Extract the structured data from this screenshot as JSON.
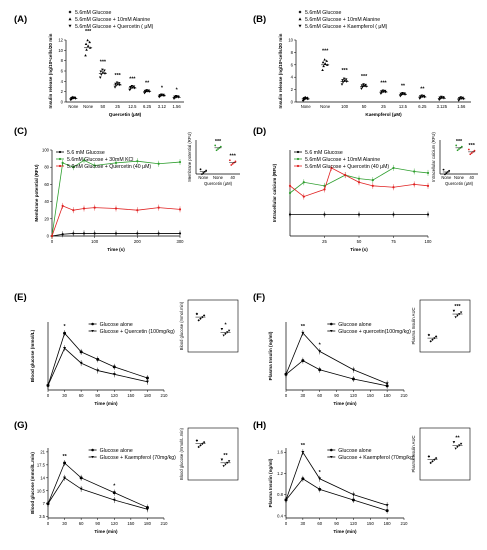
{
  "panels": [
    {
      "id": "A",
      "label": "(A)"
    },
    {
      "id": "B",
      "label": "(B)"
    },
    {
      "id": "C",
      "label": "(C)"
    },
    {
      "id": "D",
      "label": "(D)"
    },
    {
      "id": "E",
      "label": "(E)"
    },
    {
      "id": "F",
      "label": "(F)"
    },
    {
      "id": "G",
      "label": "(G)"
    },
    {
      "id": "H",
      "label": "(H)"
    }
  ],
  "colors": {
    "black": "#000000",
    "green": "#2e9e2e",
    "red": "#e02020"
  },
  "chart_data": [
    {
      "panel": "A",
      "type": "scatter",
      "legend": [
        "5.6mM Glucose",
        "5.6mM Glucose + 10mM Alanine",
        "5.6mM Glucose + Quercetin ( μM)"
      ],
      "ylabel": "Insulin release (ng/10⁶cells/20 min",
      "xlabel": "Quercetin (μM)",
      "categories": [
        "None",
        "None",
        "50",
        "25",
        "12.5",
        "6.25",
        "3.12",
        "1.56"
      ],
      "means": [
        0.7,
        10.5,
        5.5,
        3.3,
        2.7,
        2.0,
        1.2,
        0.9
      ],
      "sig": [
        "",
        "***",
        "***",
        "***",
        "***",
        "**",
        "*",
        "*"
      ],
      "yticks": [
        0,
        2,
        4,
        6,
        8,
        10,
        12
      ],
      "ylim": [
        0,
        12
      ]
    },
    {
      "panel": "B",
      "type": "scatter",
      "legend": [
        "5.6mM Glucose",
        "5.6mM Glucose + 10mM Alanine",
        "5.6mM Glucose + Kaempferol ( μM)"
      ],
      "ylabel": "Insulin release (ng/10⁶cells/20 min",
      "xlabel": "Kaempferol (μM)",
      "categories": [
        "None",
        "None",
        "100",
        "50",
        "25",
        "12.5",
        "6.25",
        "3.125",
        "1.56"
      ],
      "means": [
        0.5,
        6.0,
        3.3,
        2.5,
        1.6,
        1.2,
        0.8,
        0.6,
        0.5
      ],
      "sig": [
        "",
        "***",
        "***",
        "***",
        "***",
        "**",
        "**",
        "",
        ""
      ],
      "yticks": [
        0,
        2,
        4,
        6,
        8,
        10
      ],
      "ylim": [
        0,
        10
      ]
    },
    {
      "panel": "C",
      "type": "line",
      "legend": [
        "5.6 mM Glucose",
        "5.6mM Glucose + 30mM KCl",
        "5.6mM Glucose + Quercetin (40 μM)"
      ],
      "ylabel": "Membrane potential (RFU)",
      "xlabel": "Time (s)",
      "xlim": [
        0,
        300
      ],
      "ylim": [
        0,
        100
      ],
      "xticks": [
        0,
        100,
        200,
        300
      ],
      "yticks": [
        0,
        20,
        40,
        60,
        80,
        100
      ],
      "series": [
        {
          "name": "5.6 mM Glucose",
          "color": "black",
          "x": [
            0,
            25,
            50,
            75,
            100,
            150,
            200,
            250,
            300
          ],
          "y": [
            0,
            2,
            3,
            3,
            3,
            3,
            3,
            3,
            3
          ]
        },
        {
          "name": "5.6mM Glucose + 30mM KCl",
          "color": "green",
          "x": [
            0,
            25,
            50,
            75,
            100,
            150,
            200,
            250,
            300
          ],
          "y": [
            0,
            85,
            80,
            88,
            82,
            85,
            87,
            84,
            86
          ]
        },
        {
          "name": "5.6mM Glucose + Quercetin (40 μM)",
          "color": "red",
          "x": [
            0,
            25,
            50,
            75,
            100,
            150,
            200,
            250,
            300
          ],
          "y": [
            0,
            35,
            30,
            32,
            33,
            32,
            30,
            33,
            31
          ]
        }
      ],
      "inset": {
        "ylabel": "Membrane potential (RFU)",
        "xlabel": "Quercetin (μM)",
        "categories": [
          "None",
          "None",
          "40"
        ],
        "means": [
          4,
          46,
          20
        ],
        "sig": [
          "",
          "***",
          "***"
        ]
      }
    },
    {
      "panel": "D",
      "type": "line",
      "legend": [
        "5.6 mM Glucose",
        "5.6mM Glucose + 10mM Alanine",
        "5.6mM Glucose + Quercetin (40 μM)"
      ],
      "ylabel": "Intracellular calcium (RFU)",
      "xlabel": "Time (s)",
      "xlim": [
        0,
        100
      ],
      "ylim": [
        0,
        120
      ],
      "xticks": [
        25,
        50,
        75,
        100
      ],
      "series": [
        {
          "name": "5.6 mM Glucose",
          "color": "black",
          "x": [
            0,
            25,
            50,
            75,
            100
          ],
          "y": [
            30,
            30,
            30,
            30,
            30
          ]
        },
        {
          "name": "5.6mM Glucose + 10mM Alanine",
          "color": "green",
          "x": [
            0,
            10,
            25,
            40,
            50,
            60,
            75,
            90,
            100
          ],
          "y": [
            60,
            75,
            70,
            85,
            80,
            78,
            95,
            90,
            88
          ]
        },
        {
          "name": "5.6mM Glucose + Quercetin (40 μM)",
          "color": "red",
          "x": [
            0,
            10,
            25,
            30,
            40,
            50,
            60,
            75,
            90,
            100
          ],
          "y": [
            70,
            55,
            65,
            95,
            85,
            75,
            70,
            68,
            72,
            70
          ]
        }
      ],
      "inset": {
        "ylabel": "Intracellular calcium (RFU)",
        "xlabel": "Quercetin (μM)",
        "categories": [
          "None",
          "None",
          "40"
        ],
        "means": [
          10,
          130,
          110
        ],
        "sig": [
          "",
          "***",
          "***"
        ]
      }
    },
    {
      "panel": "E",
      "type": "line",
      "legend": [
        "Glucose alone",
        "Glucose + Quercetin (100mg/kg)"
      ],
      "ylabel": "Blood glucose (mmol/L)",
      "xlabel": "Time (min)",
      "xticks": [
        0,
        30,
        60,
        90,
        120,
        150,
        180,
        210
      ],
      "series": [
        {
          "name": "Glucose alone",
          "x": [
            0,
            30,
            60,
            90,
            120,
            180
          ],
          "y": [
            6,
            20,
            15,
            13,
            11,
            8
          ]
        },
        {
          "name": "Glucose + Quercetin (100mg/kg)",
          "x": [
            0,
            30,
            60,
            90,
            120,
            180
          ],
          "y": [
            6,
            16,
            12,
            10,
            9,
            7
          ]
        }
      ],
      "sig": [
        {
          "x": 30,
          "text": "*"
        }
      ],
      "inset": {
        "ylabel": "Blood glucose (mmol.min)",
        "values": [
          1500,
          1300
        ],
        "sig": [
          "",
          "*"
        ]
      }
    },
    {
      "panel": "F",
      "type": "line",
      "legend": [
        "Glucose alone",
        "Glucose + quercetin(100mg/kg)"
      ],
      "ylabel": "Plasma Insulin (ng/ml)",
      "xlabel": "Time (min)",
      "xticks": [
        0,
        30,
        60,
        90,
        120,
        150,
        180,
        210
      ],
      "series": [
        {
          "name": "Glucose alone",
          "x": [
            0,
            30,
            60,
            120,
            180
          ],
          "y": [
            0.7,
            1.0,
            0.8,
            0.6,
            0.45
          ]
        },
        {
          "name": "Glucose + quercetin(100mg/kg)",
          "x": [
            0,
            30,
            60,
            120,
            180
          ],
          "y": [
            0.7,
            1.6,
            1.2,
            0.8,
            0.5
          ]
        }
      ],
      "sig": [
        {
          "x": 30,
          "text": "**"
        },
        {
          "x": 60,
          "text": "*"
        }
      ],
      "inset": {
        "ylabel": "Plasma Insulin AUC",
        "values": [
          130,
          175
        ],
        "sig": [
          "",
          "***"
        ]
      }
    },
    {
      "panel": "G",
      "type": "line",
      "legend": [
        "Glucose alone",
        "Glucose + Kaempferol (70mg/kg)"
      ],
      "ylabel": "Blood glucose (mmol/L.min)",
      "xlabel": "Time (min)",
      "yticks": [
        3.5,
        7.0,
        10.5,
        14.0,
        17.5,
        21.0
      ],
      "xticks": [
        0,
        30,
        60,
        90,
        120,
        150,
        180,
        210
      ],
      "series": [
        {
          "name": "Glucose alone",
          "x": [
            0,
            30,
            60,
            120,
            180
          ],
          "y": [
            7,
            18,
            14,
            10,
            6
          ]
        },
        {
          "name": "Glucose + Kaempferol (70mg/kg)",
          "x": [
            0,
            30,
            60,
            120,
            180
          ],
          "y": [
            7,
            14,
            11,
            8,
            5.5
          ]
        }
      ],
      "sig": [
        {
          "x": 30,
          "text": "**"
        },
        {
          "x": 120,
          "text": "*"
        }
      ],
      "inset": {
        "ylabel": "Blood glucose (mmol/L.min)",
        "values": [
          2200,
          1800
        ],
        "sig": [
          "",
          "**"
        ]
      }
    },
    {
      "panel": "H",
      "type": "line",
      "legend": [
        "Glucose alone",
        "Glucose + Kaempferol (70mg/kg)"
      ],
      "ylabel": "Plasma Insulin (ng/ml)",
      "xlabel": "Time (min)",
      "yticks": [
        0.4,
        0.8,
        1.2,
        1.6
      ],
      "xticks": [
        0,
        30,
        60,
        90,
        120,
        150,
        180,
        210
      ],
      "series": [
        {
          "name": "Glucose alone",
          "x": [
            0,
            30,
            60,
            120,
            180
          ],
          "y": [
            0.7,
            1.1,
            0.9,
            0.7,
            0.5
          ]
        },
        {
          "name": "Glucose + Kaempferol (70mg/kg)",
          "x": [
            0,
            30,
            60,
            120,
            180
          ],
          "y": [
            0.7,
            1.6,
            1.1,
            0.8,
            0.6
          ]
        }
      ],
      "sig": [
        {
          "x": 30,
          "text": "**"
        },
        {
          "x": 60,
          "text": "*"
        }
      ],
      "inset": {
        "ylabel": "Plasma Insulin AUC",
        "values": [
          142,
          162
        ],
        "sig": [
          "",
          "**"
        ]
      }
    }
  ]
}
